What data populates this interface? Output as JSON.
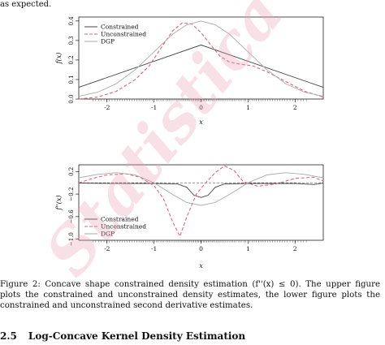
{
  "intro_text": "as expected.",
  "chart_data": [
    {
      "type": "line",
      "xlabel": "x",
      "ylabel": "f(x)",
      "xlim": [
        -2.6,
        2.6
      ],
      "ylim": [
        0,
        0.42
      ],
      "xticks": [
        -2,
        -1,
        0,
        1,
        2
      ],
      "yticks": [
        0.0,
        0.1,
        0.2,
        0.3,
        0.4
      ],
      "ytick_labels": [
        "0.0",
        "0.1",
        "0.2",
        "0.3",
        "0.4"
      ],
      "legend": {
        "position": "top-left",
        "entries": [
          "Constrained",
          "Unconstrained",
          "DGP"
        ]
      },
      "series": [
        {
          "name": "Constrained",
          "style": "solid",
          "color": "#444444",
          "x": [
            -2.6,
            0.0,
            2.6
          ],
          "y": [
            0.06,
            0.277,
            0.06
          ]
        },
        {
          "name": "Unconstrained",
          "style": "dashed",
          "color": "#e8607f",
          "x": [
            -2.6,
            -2.2,
            -1.8,
            -1.4,
            -1.1,
            -0.8,
            -0.6,
            -0.4,
            -0.2,
            0.0,
            0.2,
            0.4,
            0.6,
            0.8,
            1.1,
            1.4,
            1.8,
            2.2,
            2.6
          ],
          "y": [
            0.0,
            0.01,
            0.04,
            0.1,
            0.17,
            0.28,
            0.35,
            0.39,
            0.385,
            0.34,
            0.28,
            0.22,
            0.19,
            0.18,
            0.17,
            0.14,
            0.09,
            0.04,
            0.01
          ]
        },
        {
          "name": "DGP",
          "style": "solid",
          "color": "#aaaaaa",
          "x": [
            -2.6,
            -2.2,
            -1.8,
            -1.4,
            -1.0,
            -0.6,
            -0.3,
            0.0,
            0.3,
            0.6,
            1.0,
            1.4,
            1.8,
            2.2,
            2.6
          ],
          "y": [
            0.014,
            0.035,
            0.079,
            0.15,
            0.242,
            0.333,
            0.381,
            0.399,
            0.381,
            0.333,
            0.242,
            0.15,
            0.079,
            0.035,
            0.014
          ]
        }
      ]
    },
    {
      "type": "line",
      "xlabel": "x",
      "ylabel": "f''(x)",
      "xlim": [
        -2.6,
        2.6
      ],
      "ylim": [
        -1.02,
        0.32
      ],
      "xticks": [
        -2,
        -1,
        0,
        1,
        2
      ],
      "yticks": [
        0.2,
        -0.2,
        -0.6,
        -1.0
      ],
      "ytick_labels": [
        "0.2",
        "−0.2",
        "−0.6",
        "−1.0"
      ],
      "reference_line": 0,
      "legend": {
        "position": "bottom-left",
        "entries": [
          "Constrained",
          "Unconstrained",
          "DGP"
        ]
      },
      "series": [
        {
          "name": "Constrained",
          "style": "solid",
          "color": "#444444",
          "x": [
            -2.6,
            -2.0,
            -1.0,
            -0.5,
            -0.3,
            -0.15,
            0.0,
            0.15,
            0.3,
            0.5,
            1.0,
            2.0,
            2.4,
            2.6
          ],
          "y": [
            -0.005,
            -0.01,
            -0.012,
            -0.02,
            -0.08,
            -0.22,
            -0.26,
            -0.22,
            -0.08,
            -0.02,
            -0.012,
            -0.01,
            -0.03,
            -0.005
          ]
        },
        {
          "name": "Unconstrained",
          "style": "dashed",
          "color": "#e8607f",
          "x": [
            -2.6,
            -2.3,
            -2.0,
            -1.6,
            -1.3,
            -1.0,
            -0.8,
            -0.6,
            -0.45,
            -0.3,
            -0.1,
            0.1,
            0.3,
            0.5,
            0.7,
            0.9,
            1.2,
            1.6,
            2.0,
            2.4,
            2.6
          ],
          "y": [
            0.0,
            0.08,
            0.14,
            0.16,
            0.1,
            -0.05,
            -0.28,
            -0.7,
            -0.95,
            -0.6,
            -0.2,
            0.0,
            0.18,
            0.3,
            0.22,
            0.02,
            -0.06,
            -0.02,
            0.08,
            0.1,
            0.03
          ]
        },
        {
          "name": "DGP",
          "style": "solid",
          "color": "#aaaaaa",
          "x": [
            -2.6,
            -2.2,
            -1.8,
            -1.4,
            -1.0,
            -0.6,
            -0.3,
            0.0,
            0.3,
            0.6,
            1.0,
            1.4,
            1.8,
            2.2,
            2.6
          ],
          "y": [
            0.09,
            0.15,
            0.18,
            0.14,
            0.0,
            -0.21,
            -0.35,
            -0.4,
            -0.35,
            -0.21,
            0.0,
            0.14,
            0.18,
            0.15,
            0.09
          ]
        }
      ]
    }
  ],
  "caption": {
    "label": "Figure 2:",
    "text": "Concave shape constrained density estimation (f''(x) ≤ 0). The upper figure plots the constrained and unconstrained density estimates, the lower figure plots the constrained and unconstrained second derivative estimates."
  },
  "section": {
    "number": "2.5",
    "title": "Log-Concave Kernel Density Estimation"
  },
  "watermark": "Statistica Sinica"
}
